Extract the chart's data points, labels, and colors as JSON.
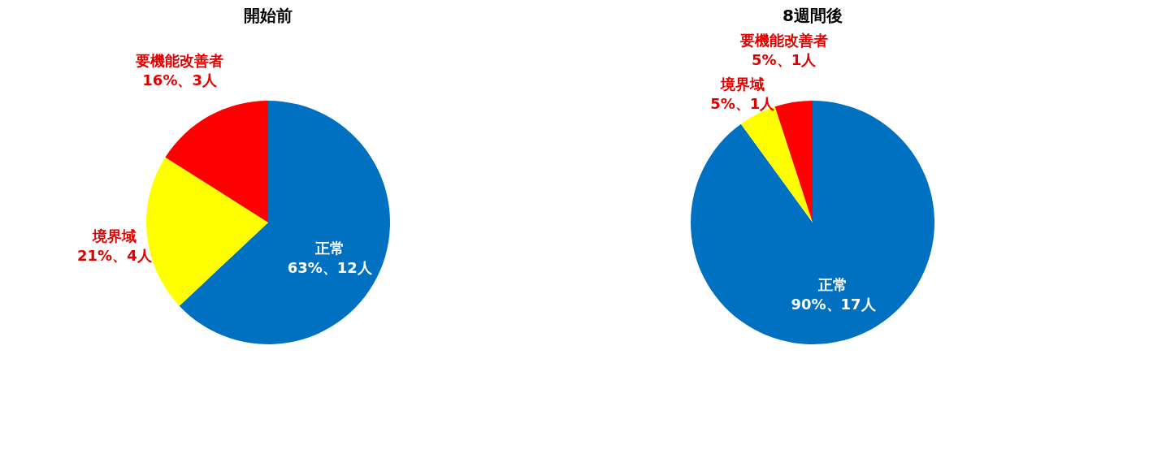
{
  "chart_data": [
    {
      "type": "pie",
      "title": "開始前",
      "categories": [
        "正常",
        "境界域",
        "要機能改善者"
      ],
      "values": [
        63,
        21,
        16
      ],
      "colors": [
        "#0070c0",
        "#ffff00",
        "#ff0000"
      ],
      "value_labels": [
        "63%、12人",
        "21%、4人",
        "16%、3人"
      ]
    },
    {
      "type": "pie",
      "title": "8週間後",
      "categories": [
        "正常",
        "境界域",
        "要機能改善者"
      ],
      "values": [
        90,
        5,
        5
      ],
      "colors": [
        "#0070c0",
        "#ffff00",
        "#ff0000"
      ],
      "value_labels": [
        "90%、17人",
        "5%、1人",
        "5%、1人"
      ]
    }
  ]
}
